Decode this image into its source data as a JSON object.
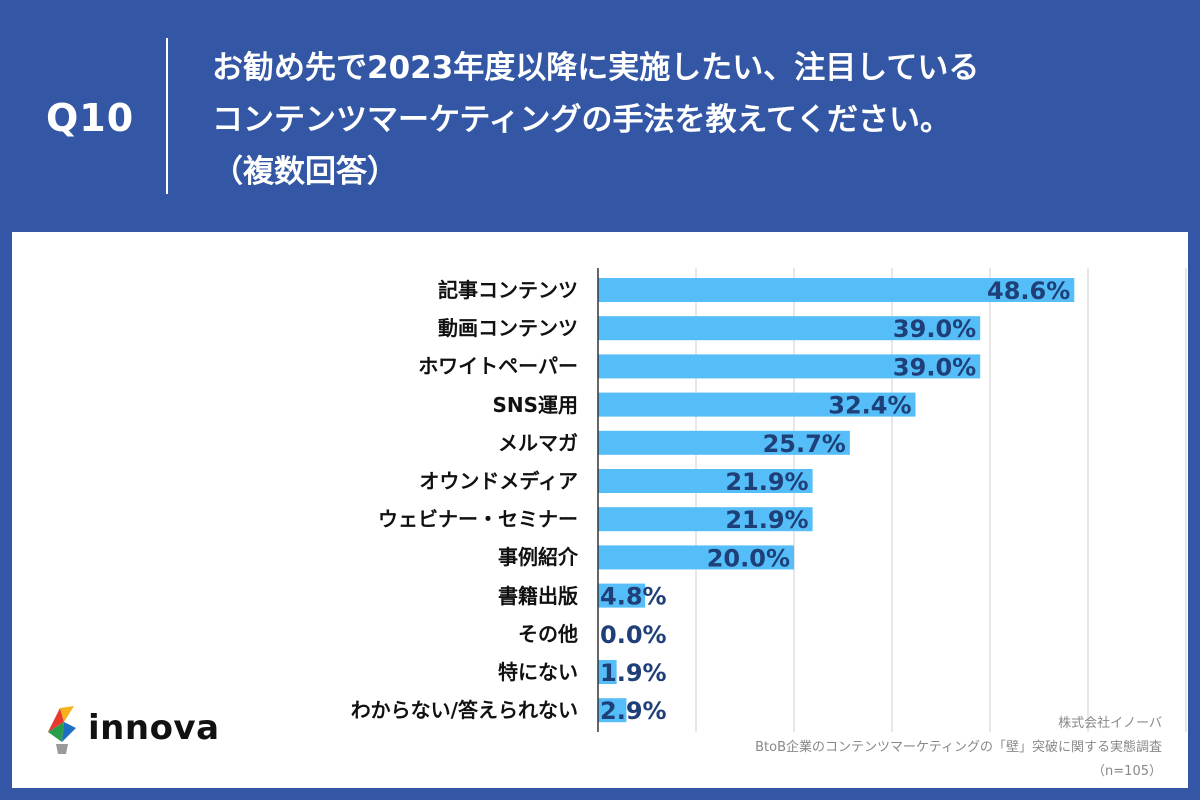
{
  "header": {
    "q_label": "Q10",
    "question_lines": [
      "お勧め先で2023年度以降に実施したい、注目している",
      "コンテンツマーケティングの手法を教えてください。",
      "（複数回答）"
    ]
  },
  "footer": {
    "company": "株式会社イノーバ",
    "survey": "BtoB企業のコンテンツマーケティングの「壁」突破に関する実態調査",
    "sample": "（n=105）"
  },
  "logo": {
    "text": "innova",
    "icon": "lightbulb-logo-icon"
  },
  "colors": {
    "header_bg": "#3357a5",
    "bar": "#55bdf7",
    "value_label": "#1e3f78",
    "grid": "#cfcfcf"
  },
  "chart_data": {
    "type": "bar",
    "orientation": "horizontal",
    "categories": [
      "記事コンテンツ",
      "動画コンテンツ",
      "ホワイトペーパー",
      "SNS運用",
      "メルマガ",
      "オウンドメディア",
      "ウェビナー・セミナー",
      "事例紹介",
      "書籍出版",
      "その他",
      "特にない",
      "わからない/答えられない"
    ],
    "values": [
      48.6,
      39.0,
      39.0,
      32.4,
      25.7,
      21.9,
      21.9,
      20.0,
      4.8,
      0.0,
      1.9,
      2.9
    ],
    "value_labels": [
      "48.6%",
      "39.0%",
      "39.0%",
      "32.4%",
      "25.7%",
      "21.9%",
      "21.9%",
      "20.0%",
      "4.8%",
      "0.0%",
      "1.9%",
      "2.9%"
    ],
    "xlim": [
      0,
      60
    ],
    "grid": true
  }
}
